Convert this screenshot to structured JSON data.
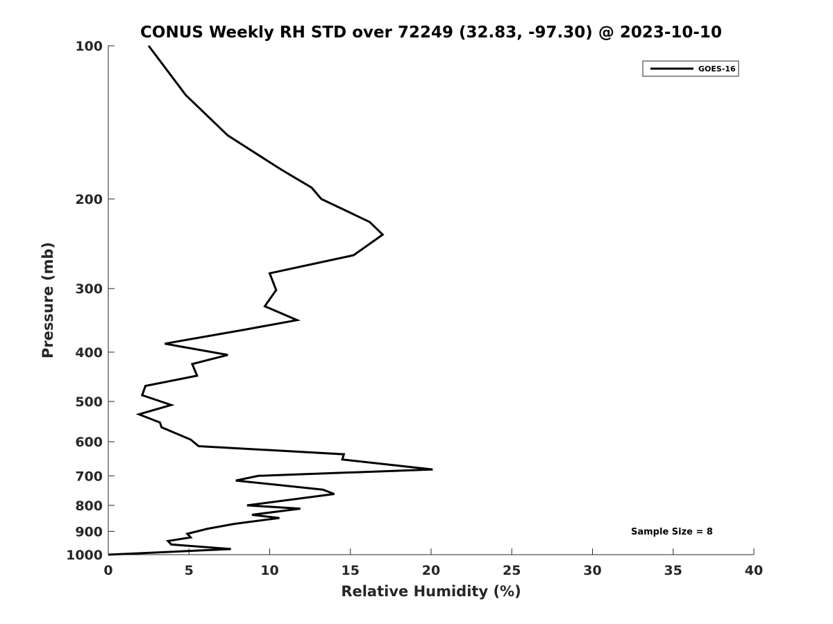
{
  "chart_data": {
    "type": "line",
    "title": "CONUS Weekly RH STD over 72249 (32.83, -97.30) @ 2023-10-10",
    "xlabel": "Relative Humidity (%)",
    "ylabel": "Pressure (mb)",
    "xlim": [
      0,
      40
    ],
    "ylim": [
      100,
      1000
    ],
    "y_scale": "log",
    "y_reversed": true,
    "x_ticks": [
      0,
      5,
      10,
      15,
      20,
      25,
      30,
      35,
      40
    ],
    "y_ticks": [
      100,
      200,
      300,
      400,
      500,
      600,
      700,
      800,
      900,
      1000
    ],
    "grid": false,
    "legend_position": "top-right",
    "series": [
      {
        "name": "GOES-16",
        "color": "#000000",
        "points": [
          [
            2.5,
            100
          ],
          [
            4.8,
            125
          ],
          [
            7.4,
            150
          ],
          [
            10.7,
            175
          ],
          [
            12.6,
            190
          ],
          [
            13.2,
            200
          ],
          [
            16.2,
            222
          ],
          [
            17.0,
            235
          ],
          [
            15.2,
            258
          ],
          [
            10.0,
            280
          ],
          [
            10.4,
            302
          ],
          [
            9.7,
            325
          ],
          [
            11.7,
            346
          ],
          [
            8.3,
            362
          ],
          [
            3.5,
            385
          ],
          [
            7.4,
            405
          ],
          [
            5.2,
            422
          ],
          [
            5.5,
            445
          ],
          [
            2.3,
            466
          ],
          [
            2.1,
            486
          ],
          [
            3.9,
            508
          ],
          [
            1.9,
            530
          ],
          [
            3.2,
            550
          ],
          [
            3.3,
            562
          ],
          [
            5.1,
            594
          ],
          [
            5.6,
            612
          ],
          [
            14.6,
            635
          ],
          [
            14.5,
            650
          ],
          [
            20.1,
            680
          ],
          [
            9.3,
            700
          ],
          [
            7.9,
            715
          ],
          [
            13.3,
            745
          ],
          [
            14.0,
            760
          ],
          [
            8.6,
            800
          ],
          [
            11.9,
            812
          ],
          [
            8.9,
            835
          ],
          [
            10.6,
            847
          ],
          [
            7.8,
            870
          ],
          [
            6.1,
            890
          ],
          [
            4.9,
            910
          ],
          [
            5.1,
            925
          ],
          [
            3.7,
            940
          ],
          [
            3.9,
            955
          ],
          [
            7.6,
            975
          ],
          [
            0.0,
            1000
          ]
        ]
      }
    ],
    "annotations": [
      "Sample Size = 8"
    ]
  }
}
